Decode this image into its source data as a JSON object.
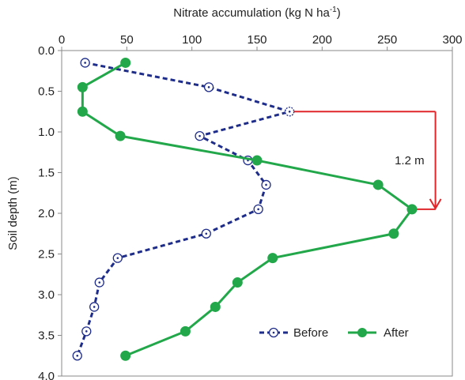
{
  "chart_data": {
    "type": "line",
    "xlabel_text": "Nitrate accumulation (kg N ha",
    "xlabel_sup": "-1",
    "xlabel_close": ")",
    "ylabel": "Soil depth (m)",
    "x_axis_position": "top",
    "y_axis_inverted": true,
    "xlim": [
      0,
      300
    ],
    "ylim": [
      0,
      4.0
    ],
    "xticks": [
      0,
      50,
      100,
      150,
      200,
      250,
      300
    ],
    "yticks": [
      0.0,
      0.5,
      1.0,
      1.5,
      2.0,
      2.5,
      3.0,
      3.5,
      4.0
    ],
    "grid": false,
    "legend_position": "bottom-right",
    "series": [
      {
        "name": "Before",
        "color": "#1f2d8a",
        "line_style": "dashed",
        "marker": "hollow-circle",
        "points": [
          {
            "x": 18,
            "y": 0.15
          },
          {
            "x": 113,
            "y": 0.45
          },
          {
            "x": 175,
            "y": 0.75
          },
          {
            "x": 106,
            "y": 1.05
          },
          {
            "x": 143,
            "y": 1.35
          },
          {
            "x": 157,
            "y": 1.65
          },
          {
            "x": 151,
            "y": 1.95
          },
          {
            "x": 111,
            "y": 2.25
          },
          {
            "x": 43,
            "y": 2.55
          },
          {
            "x": 29,
            "y": 2.85
          },
          {
            "x": 25,
            "y": 3.15
          },
          {
            "x": 19,
            "y": 3.45
          },
          {
            "x": 12,
            "y": 3.75
          }
        ]
      },
      {
        "name": "After",
        "color": "#22a84a",
        "line_style": "solid",
        "marker": "filled-circle",
        "points": [
          {
            "x": 49,
            "y": 0.15
          },
          {
            "x": 16,
            "y": 0.45
          },
          {
            "x": 16,
            "y": 0.75
          },
          {
            "x": 45,
            "y": 1.05
          },
          {
            "x": 150,
            "y": 1.35
          },
          {
            "x": 243,
            "y": 1.65
          },
          {
            "x": 269,
            "y": 1.95
          },
          {
            "x": 255,
            "y": 2.25
          },
          {
            "x": 162,
            "y": 2.55
          },
          {
            "x": 135,
            "y": 2.85
          },
          {
            "x": 118,
            "y": 3.15
          },
          {
            "x": 95,
            "y": 3.45
          },
          {
            "x": 49,
            "y": 3.75
          }
        ]
      }
    ],
    "annotation": {
      "label": "1.2 m",
      "color": "#e0262a",
      "from": {
        "x": 175,
        "y": 0.75
      },
      "to": {
        "x": 269,
        "y": 1.95
      },
      "arrow_x": 287
    }
  }
}
